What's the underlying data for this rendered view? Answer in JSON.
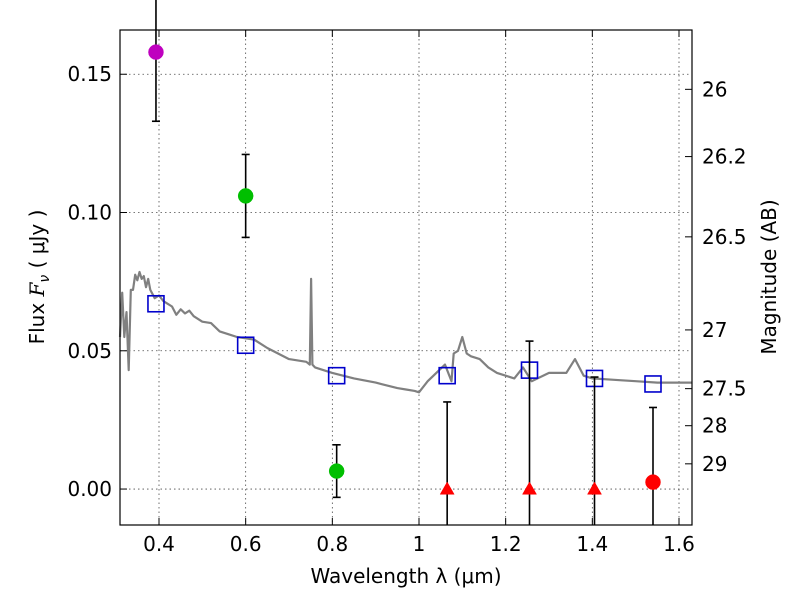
{
  "chart_data": {
    "type": "scatter",
    "xlabel": "Wavelength  λ (μm)",
    "ylabel": "Flux  F_ν  ( μJy )",
    "ylabel_parts": {
      "prefix": "Flux ",
      "symbol": "F",
      "subscript": "ν",
      "suffix": "  ( μJy )"
    },
    "y2label": "Magnitude (AB)",
    "xlim": [
      0.31,
      1.63
    ],
    "ylim": [
      -0.013,
      0.166
    ],
    "grid": true,
    "x_ticks": [
      0.4,
      0.6,
      0.8,
      1.0,
      1.2,
      1.4,
      1.6
    ],
    "x_tick_labels": [
      "0.4",
      "0.6",
      "0.8",
      "1",
      "1.2",
      "1.4",
      "1.6"
    ],
    "y_ticks": [
      0.0,
      0.05,
      0.1,
      0.15
    ],
    "y_tick_labels": [
      "0.00",
      "0.05",
      "0.10",
      "0.15"
    ],
    "mag_ticks": [
      26,
      26.2,
      26.5,
      27,
      27.5,
      28,
      29
    ],
    "mag_tick_labels": [
      "26",
      "26.2",
      "26.5",
      "27",
      "27.5",
      "28",
      "29"
    ],
    "observed": [
      {
        "x": 0.393,
        "y": 0.158,
        "err": 0.025,
        "marker": "circle",
        "color": "#bf00bf"
      },
      {
        "x": 0.6,
        "y": 0.106,
        "err": 0.015,
        "marker": "circle",
        "color": "#00bf00"
      },
      {
        "x": 0.81,
        "y": 0.0065,
        "err": 0.0095,
        "marker": "circle",
        "color": "#00bf00"
      },
      {
        "x": 1.065,
        "y": 0.0,
        "err": 0.0315,
        "marker": "triangle",
        "color": "#ff0000"
      },
      {
        "x": 1.255,
        "y": 0.0,
        "err": 0.0535,
        "marker": "triangle",
        "color": "#ff0000"
      },
      {
        "x": 1.405,
        "y": 0.0,
        "err": 0.0405,
        "marker": "triangle",
        "color": "#ff0000"
      },
      {
        "x": 1.54,
        "y": 0.0025,
        "err": 0.027,
        "marker": "circle",
        "color": "#ff0000"
      }
    ],
    "model_bandflux": {
      "color": "#0000cc",
      "x": [
        0.393,
        0.6,
        0.81,
        1.065,
        1.255,
        1.405,
        1.54
      ],
      "y": [
        0.067,
        0.052,
        0.041,
        0.041,
        0.043,
        0.04,
        0.038
      ]
    },
    "template_spectrum": {
      "color": "#808080",
      "x": [
        0.31,
        0.315,
        0.32,
        0.325,
        0.33,
        0.335,
        0.34,
        0.345,
        0.35,
        0.355,
        0.36,
        0.365,
        0.37,
        0.375,
        0.38,
        0.39,
        0.4,
        0.41,
        0.42,
        0.43,
        0.44,
        0.45,
        0.46,
        0.47,
        0.48,
        0.5,
        0.52,
        0.54,
        0.56,
        0.58,
        0.6,
        0.62,
        0.65,
        0.7,
        0.74,
        0.748,
        0.751,
        0.754,
        0.76,
        0.8,
        0.85,
        0.9,
        0.95,
        0.97,
        0.99,
        1.0,
        1.02,
        1.04,
        1.06,
        1.075,
        1.08,
        1.09,
        1.1,
        1.11,
        1.12,
        1.14,
        1.16,
        1.18,
        1.2,
        1.22,
        1.24,
        1.26,
        1.3,
        1.34,
        1.36,
        1.38,
        1.4,
        1.45,
        1.5,
        1.55,
        1.6,
        1.63
      ],
      "y": [
        0.055,
        0.071,
        0.055,
        0.064,
        0.043,
        0.072,
        0.072,
        0.0775,
        0.0755,
        0.0785,
        0.076,
        0.077,
        0.073,
        0.076,
        0.072,
        0.069,
        0.07,
        0.068,
        0.067,
        0.066,
        0.063,
        0.065,
        0.0635,
        0.0645,
        0.0625,
        0.0605,
        0.06,
        0.057,
        0.056,
        0.055,
        0.0545,
        0.054,
        0.051,
        0.047,
        0.046,
        0.045,
        0.076,
        0.045,
        0.044,
        0.042,
        0.04,
        0.0385,
        0.0365,
        0.036,
        0.0355,
        0.035,
        0.039,
        0.042,
        0.045,
        0.039,
        0.049,
        0.05,
        0.055,
        0.049,
        0.048,
        0.047,
        0.044,
        0.042,
        0.041,
        0.04,
        0.044,
        0.039,
        0.042,
        0.042,
        0.047,
        0.041,
        0.04,
        0.0395,
        0.039,
        0.0385,
        0.0385,
        0.0385
      ]
    }
  }
}
